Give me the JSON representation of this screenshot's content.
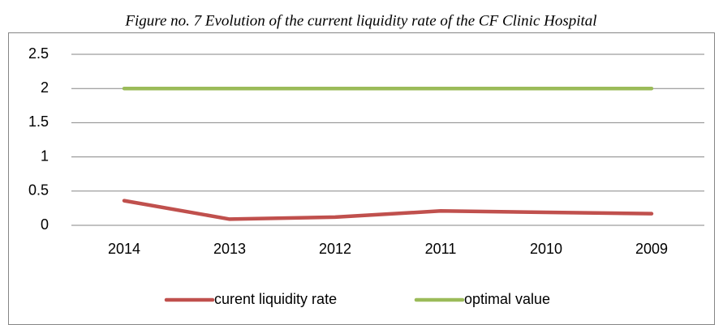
{
  "chart_data": {
    "type": "line",
    "title": "Figure no. 7 Evolution of the current liquidity rate of the CF Clinic Hospital",
    "categories": [
      "2014",
      "2013",
      "2012",
      "2011",
      "2010",
      "2009"
    ],
    "series": [
      {
        "name": "curent liquidity rate",
        "color": "#c0504d",
        "values": [
          0.36,
          0.09,
          0.12,
          0.21,
          0.19,
          0.17
        ]
      },
      {
        "name": "optimal value",
        "color": "#9bbb59",
        "values": [
          2,
          2,
          2,
          2,
          2,
          2
        ]
      }
    ],
    "ylim": [
      0,
      2.5
    ],
    "yticks": [
      0,
      0.5,
      1,
      1.5,
      2,
      2.5
    ],
    "grid": true,
    "legend": "bottom"
  }
}
